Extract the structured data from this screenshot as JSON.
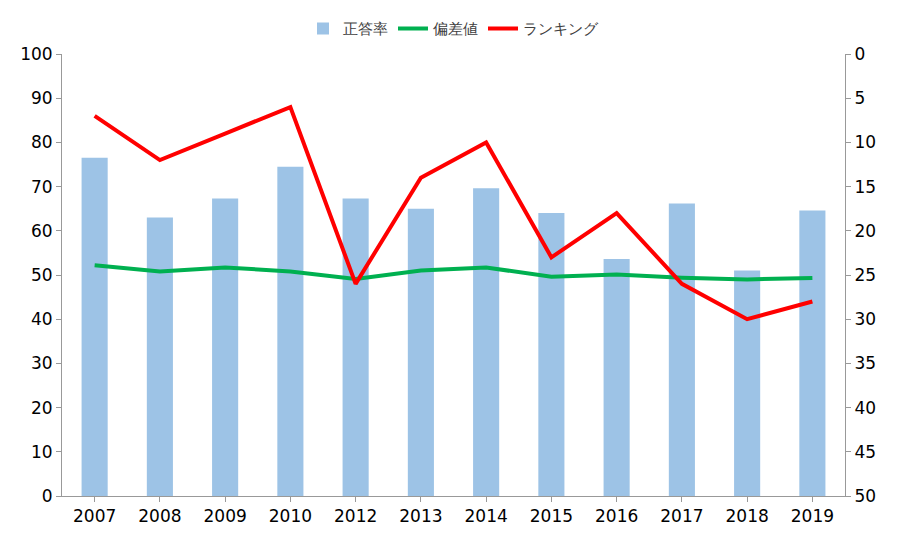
{
  "chart_data": {
    "type": "bar",
    "categories": [
      "2007",
      "2008",
      "2009",
      "2010",
      "2012",
      "2013",
      "2014",
      "2015",
      "2016",
      "2017",
      "2018",
      "2019"
    ],
    "series": [
      {
        "name": "正答率",
        "type": "bar",
        "color": "#9dc3e6",
        "values": [
          76.5,
          63,
          67.3,
          74.5,
          67.3,
          65,
          69.6,
          64,
          53.6,
          66.2,
          51,
          64.6
        ]
      },
      {
        "name": "偏差値",
        "type": "line",
        "color": "#00b050",
        "values": [
          52.2,
          50.8,
          51.7,
          50.8,
          49.1,
          51,
          51.7,
          49.6,
          50.1,
          49.4,
          49,
          49.3
        ]
      },
      {
        "name": "ランキング",
        "type": "line",
        "color": "#ff0000",
        "axis": "y2",
        "values": [
          7,
          12,
          9,
          6,
          26,
          14,
          10,
          23,
          18,
          26,
          30,
          28
        ]
      }
    ],
    "ylim": [
      0,
      100
    ],
    "yticks": [
      0,
      10,
      20,
      30,
      40,
      50,
      60,
      70,
      80,
      90,
      100
    ],
    "y2lim": [
      50,
      0
    ],
    "y2ticks": [
      0,
      5,
      10,
      15,
      20,
      25,
      30,
      35,
      40,
      45,
      50
    ],
    "grid": false,
    "legend": "top"
  }
}
